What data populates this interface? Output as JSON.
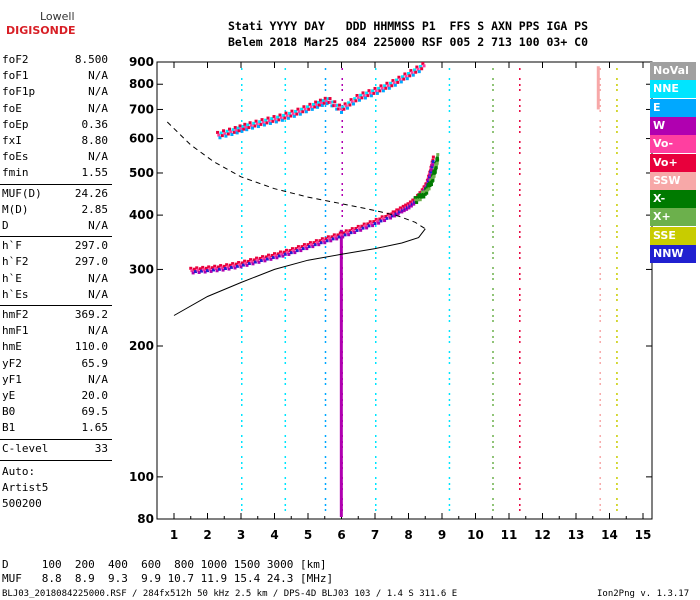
{
  "logo": {
    "top": "Lowell",
    "bottom": "DIGISONDE"
  },
  "header": {
    "line1": "Stati YYYY DAY   DDD HHMMSS P1  FFS S AXN PPS IGA PS",
    "line2": "Belem 2018 Mar25 084 225000 RSF 005 2 713 100 03+ C0"
  },
  "params": [
    {
      "name": "foF2",
      "value": "8.500"
    },
    {
      "name": "foF1",
      "value": "N/A"
    },
    {
      "name": "foF1p",
      "value": "N/A"
    },
    {
      "name": "foE",
      "value": "N/A"
    },
    {
      "name": "foEp",
      "value": "0.36"
    },
    {
      "name": "fxI",
      "value": "8.80"
    },
    {
      "name": "foEs",
      "value": "N/A"
    },
    {
      "name": "fmin",
      "value": "1.55"
    },
    {
      "name": "MUF(D)",
      "value": "24.26"
    },
    {
      "name": "M(D)",
      "value": "2.85"
    },
    {
      "name": "D",
      "value": "N/A"
    },
    {
      "name": "h`F",
      "value": "297.0"
    },
    {
      "name": "h`F2",
      "value": "297.0"
    },
    {
      "name": "h`E",
      "value": "N/A"
    },
    {
      "name": "h`Es",
      "value": "N/A"
    },
    {
      "name": "hmF2",
      "value": "369.2"
    },
    {
      "name": "hmF1",
      "value": "N/A"
    },
    {
      "name": "hmE",
      "value": "110.0"
    },
    {
      "name": "yF2",
      "value": "65.9"
    },
    {
      "name": "yF1",
      "value": "N/A"
    },
    {
      "name": "yE",
      "value": "20.0"
    },
    {
      "name": "B0",
      "value": "69.5"
    },
    {
      "name": "B1",
      "value": "1.65"
    },
    {
      "name": "C-level",
      "value": "33"
    }
  ],
  "auto": {
    "line1": "Auto:",
    "line2": "Artist5",
    "line3": "500200"
  },
  "legend": [
    {
      "label": "NoVal",
      "color": "#a0a0a0"
    },
    {
      "label": "NNE",
      "color": "#00e5ff"
    },
    {
      "label": "E",
      "color": "#00a8ff"
    },
    {
      "label": "W",
      "color": "#b000b0"
    },
    {
      "label": "Vo-",
      "color": "#ff3fa0"
    },
    {
      "label": "Vo+",
      "color": "#e8003c"
    },
    {
      "label": "SSW",
      "color": "#f7a8a8"
    },
    {
      "label": "X-",
      "color": "#007a00"
    },
    {
      "label": "X+",
      "color": "#6cb04c"
    },
    {
      "label": "SSE",
      "color": "#c8cc00"
    },
    {
      "label": "NNW",
      "color": "#2020d0"
    }
  ],
  "footer": {
    "d_row": "D     100  200  400  600  800 1000 1500 3000 [km]",
    "muf_row": "MUF   8.8  8.9  9.3  9.9 10.7 11.9 15.4 24.3 [MHz]",
    "file_info": "BLJ03_2018084225000.RSF / 284fx512h 50 kHz 2.5 km / DPS-4D BLJ03 103 / 1.4 S 311.6 E",
    "version": "Ion2Png v. 1.3.17"
  },
  "chart_data": {
    "type": "scatter",
    "xlim": [
      1,
      15
    ],
    "ylim": [
      80,
      900
    ],
    "x_ticks": [
      "1",
      "2",
      "3",
      "4",
      "5",
      "6",
      "7",
      "8",
      "9",
      "10",
      "11",
      "12",
      "13",
      "14",
      "15"
    ],
    "y_ticks": [
      "80",
      "100",
      "200",
      "300",
      "400",
      "500",
      "600",
      "700",
      "800",
      "900"
    ],
    "y_scale": "log",
    "grid": false,
    "o_trace": [
      [
        1.5,
        298
      ],
      [
        2,
        300
      ],
      [
        2.5,
        303
      ],
      [
        3,
        308
      ],
      [
        3.5,
        315
      ],
      [
        4,
        322
      ],
      [
        4.5,
        330
      ],
      [
        5,
        340
      ],
      [
        5.5,
        350
      ],
      [
        6,
        360
      ],
      [
        6.5,
        372
      ],
      [
        7,
        385
      ],
      [
        7.5,
        400
      ],
      [
        7.8,
        412
      ],
      [
        8,
        420
      ],
      [
        8.2,
        432
      ],
      [
        8.4,
        450
      ],
      [
        8.55,
        470
      ],
      [
        8.65,
        500
      ],
      [
        8.75,
        540
      ]
    ],
    "x_trace": [
      [
        8.2,
        432
      ],
      [
        8.5,
        450
      ],
      [
        8.7,
        480
      ],
      [
        8.8,
        510
      ],
      [
        8.88,
        545
      ]
    ],
    "second_hop": [
      [
        2.3,
        610
      ],
      [
        2.8,
        625
      ],
      [
        3.2,
        640
      ],
      [
        3.7,
        655
      ],
      [
        4.2,
        670
      ],
      [
        4.7,
        690
      ],
      [
        5.2,
        715
      ],
      [
        5.6,
        735
      ],
      [
        6,
        700
      ],
      [
        6.5,
        745
      ],
      [
        7,
        770
      ],
      [
        7.5,
        800
      ],
      [
        8,
        840
      ],
      [
        8.5,
        885
      ]
    ],
    "profile_dashed": [
      [
        0.8,
        655
      ],
      [
        1.5,
        580
      ],
      [
        2.2,
        530
      ],
      [
        3,
        490
      ],
      [
        4,
        460
      ],
      [
        5,
        440
      ],
      [
        6,
        425
      ],
      [
        7,
        410
      ],
      [
        7.7,
        398
      ],
      [
        8.2,
        385
      ],
      [
        8.5,
        372
      ]
    ],
    "profile_solid": [
      [
        1,
        235
      ],
      [
        2,
        260
      ],
      [
        3,
        280
      ],
      [
        4,
        300
      ],
      [
        5,
        315
      ],
      [
        6,
        325
      ],
      [
        7,
        335
      ],
      [
        7.8,
        345
      ],
      [
        8.3,
        355
      ],
      [
        8.5,
        372
      ]
    ]
  }
}
